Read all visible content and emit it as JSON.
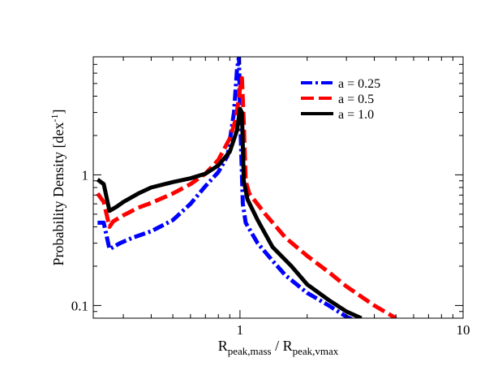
{
  "chart_data": {
    "type": "line",
    "title": "",
    "xlabel": {
      "main": "R",
      "sub1": "peak,mass",
      "sep": " / R",
      "sub2": "peak,vmax"
    },
    "ylabel": {
      "main": "Probability Density [dex",
      "sup": "-1",
      "end": "]"
    },
    "xscale": "log",
    "yscale": "log",
    "xlim": [
      0.22,
      10
    ],
    "ylim": [
      0.08,
      8
    ],
    "xticks": [
      {
        "value": 1,
        "label": "1"
      },
      {
        "value": 10,
        "label": "10"
      }
    ],
    "yticks": [
      {
        "value": 0.1,
        "label": "0.1"
      },
      {
        "value": 1,
        "label": "1"
      }
    ],
    "legend_position": "top-right",
    "series": [
      {
        "name": "a = 0.25",
        "color": "#0000ff",
        "style": "dash-dot",
        "points": [
          [
            0.23,
            0.43
          ],
          [
            0.245,
            0.43
          ],
          [
            0.26,
            0.27
          ],
          [
            0.29,
            0.3
          ],
          [
            0.33,
            0.33
          ],
          [
            0.4,
            0.37
          ],
          [
            0.5,
            0.45
          ],
          [
            0.6,
            0.6
          ],
          [
            0.7,
            0.82
          ],
          [
            0.8,
            1.05
          ],
          [
            0.88,
            1.4
          ],
          [
            0.94,
            3.0
          ],
          [
            0.97,
            6.5
          ],
          [
            0.99,
            8.0
          ],
          [
            1.0,
            3.0
          ],
          [
            1.03,
            0.6
          ],
          [
            1.06,
            0.43
          ],
          [
            1.2,
            0.3
          ],
          [
            1.4,
            0.22
          ],
          [
            1.6,
            0.17
          ],
          [
            2.0,
            0.125
          ],
          [
            2.5,
            0.1
          ],
          [
            3.0,
            0.082
          ],
          [
            3.2,
            0.078
          ]
        ]
      },
      {
        "name": "a = 0.5",
        "color": "#ff0000",
        "style": "dashed",
        "points": [
          [
            0.23,
            0.72
          ],
          [
            0.245,
            0.62
          ],
          [
            0.26,
            0.4
          ],
          [
            0.27,
            0.44
          ],
          [
            0.3,
            0.49
          ],
          [
            0.35,
            0.56
          ],
          [
            0.4,
            0.61
          ],
          [
            0.5,
            0.72
          ],
          [
            0.6,
            0.85
          ],
          [
            0.7,
            1.02
          ],
          [
            0.8,
            1.3
          ],
          [
            0.9,
            1.9
          ],
          [
            0.96,
            2.7
          ],
          [
            1.0,
            4.5
          ],
          [
            1.02,
            5.5
          ],
          [
            1.04,
            2.5
          ],
          [
            1.06,
            0.9
          ],
          [
            1.1,
            0.72
          ],
          [
            1.3,
            0.5
          ],
          [
            1.6,
            0.33
          ],
          [
            2.0,
            0.24
          ],
          [
            2.5,
            0.18
          ],
          [
            3.0,
            0.14
          ],
          [
            4.0,
            0.1
          ],
          [
            5.0,
            0.08
          ]
        ]
      },
      {
        "name": "a = 1.0",
        "color": "#000000",
        "style": "solid",
        "points": [
          [
            0.23,
            0.92
          ],
          [
            0.245,
            0.85
          ],
          [
            0.26,
            0.53
          ],
          [
            0.28,
            0.57
          ],
          [
            0.3,
            0.62
          ],
          [
            0.35,
            0.72
          ],
          [
            0.4,
            0.8
          ],
          [
            0.5,
            0.88
          ],
          [
            0.6,
            0.94
          ],
          [
            0.7,
            1.02
          ],
          [
            0.8,
            1.18
          ],
          [
            0.9,
            1.5
          ],
          [
            0.97,
            2.2
          ],
          [
            1.0,
            3.2
          ],
          [
            1.02,
            3.0
          ],
          [
            1.04,
            0.9
          ],
          [
            1.08,
            0.65
          ],
          [
            1.2,
            0.45
          ],
          [
            1.4,
            0.28
          ],
          [
            1.7,
            0.2
          ],
          [
            2.0,
            0.145
          ],
          [
            2.5,
            0.11
          ],
          [
            3.0,
            0.09
          ],
          [
            3.5,
            0.08
          ]
        ]
      }
    ]
  }
}
